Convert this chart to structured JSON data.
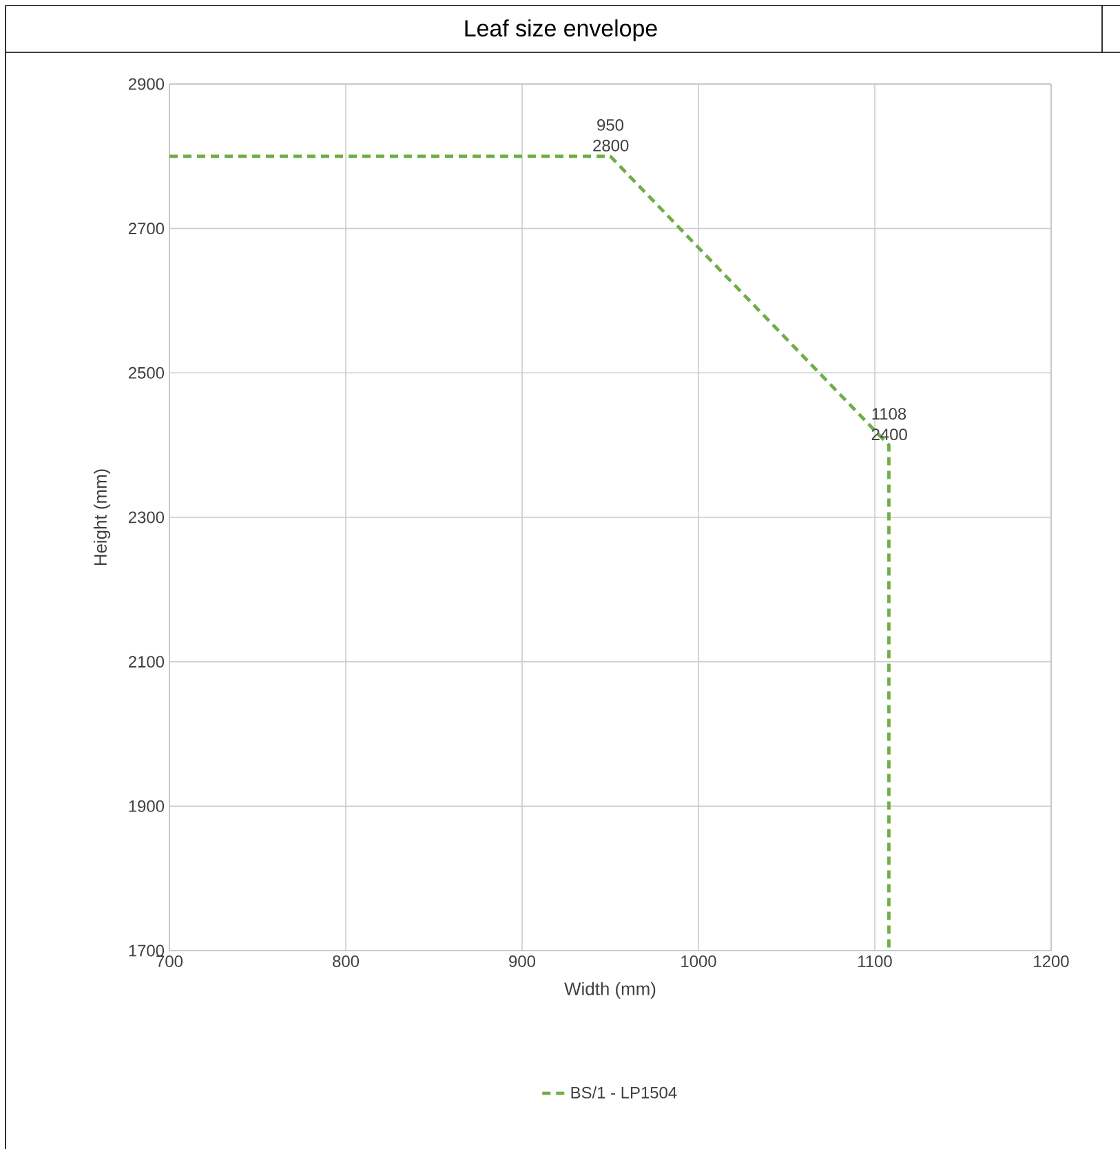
{
  "chart_data": {
    "type": "line",
    "title": "Leaf size envelope",
    "xlabel": "Width (mm)",
    "ylabel": "Height (mm)",
    "series": [
      {
        "name": "BS/1 - LP1504",
        "color": "#70ad47",
        "x": [
          700,
          950,
          1108,
          1108
        ],
        "values": [
          2800,
          2800,
          2400,
          1700
        ]
      }
    ],
    "xlim": [
      700,
      1200
    ],
    "xticks": [
      700,
      800,
      900,
      1000,
      1100,
      1200
    ],
    "ylim": [
      1700,
      2900
    ],
    "yticks": [
      1700,
      1900,
      2100,
      2300,
      2500,
      2700,
      2900
    ],
    "annotations": [
      {
        "text": "950 2800",
        "x": 950,
        "y": 2800
      },
      {
        "text": "1108 2400",
        "x": 1108,
        "y": 2400
      }
    ],
    "grid": true,
    "legend": "bottom",
    "marker": "none",
    "line_style": "dashed"
  }
}
